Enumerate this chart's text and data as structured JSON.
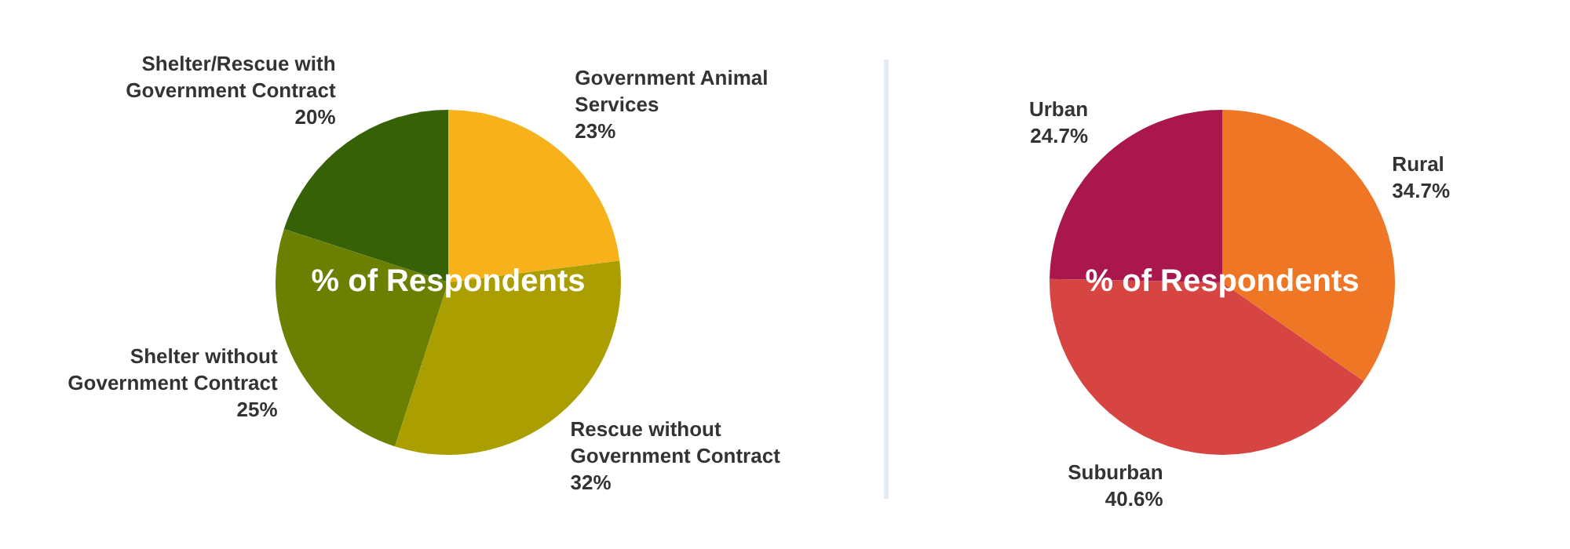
{
  "chart_data": [
    {
      "type": "pie",
      "title": "% of Respondents",
      "categories": [
        "Government Animal Services",
        "Rescue without Government Contract",
        "Shelter without Government Contract",
        "Shelter/Rescue with Government Contract"
      ],
      "values": [
        23,
        32,
        25,
        20
      ],
      "colors": [
        "#f7b21b",
        "#ab9e00",
        "#6b7f00",
        "#366107"
      ],
      "value_labels": [
        "23%",
        "32%",
        "25%",
        "20%"
      ],
      "legend": false
    },
    {
      "type": "pie",
      "title": "% of Respondents",
      "categories": [
        "Rural",
        "Suburban",
        "Urban"
      ],
      "values": [
        34.7,
        40.6,
        24.7
      ],
      "colors": [
        "#ef7625",
        "#d64541",
        "#a9174c"
      ],
      "value_labels": [
        "34.7%",
        "40.6%",
        "24.7%"
      ],
      "legend": false
    }
  ]
}
